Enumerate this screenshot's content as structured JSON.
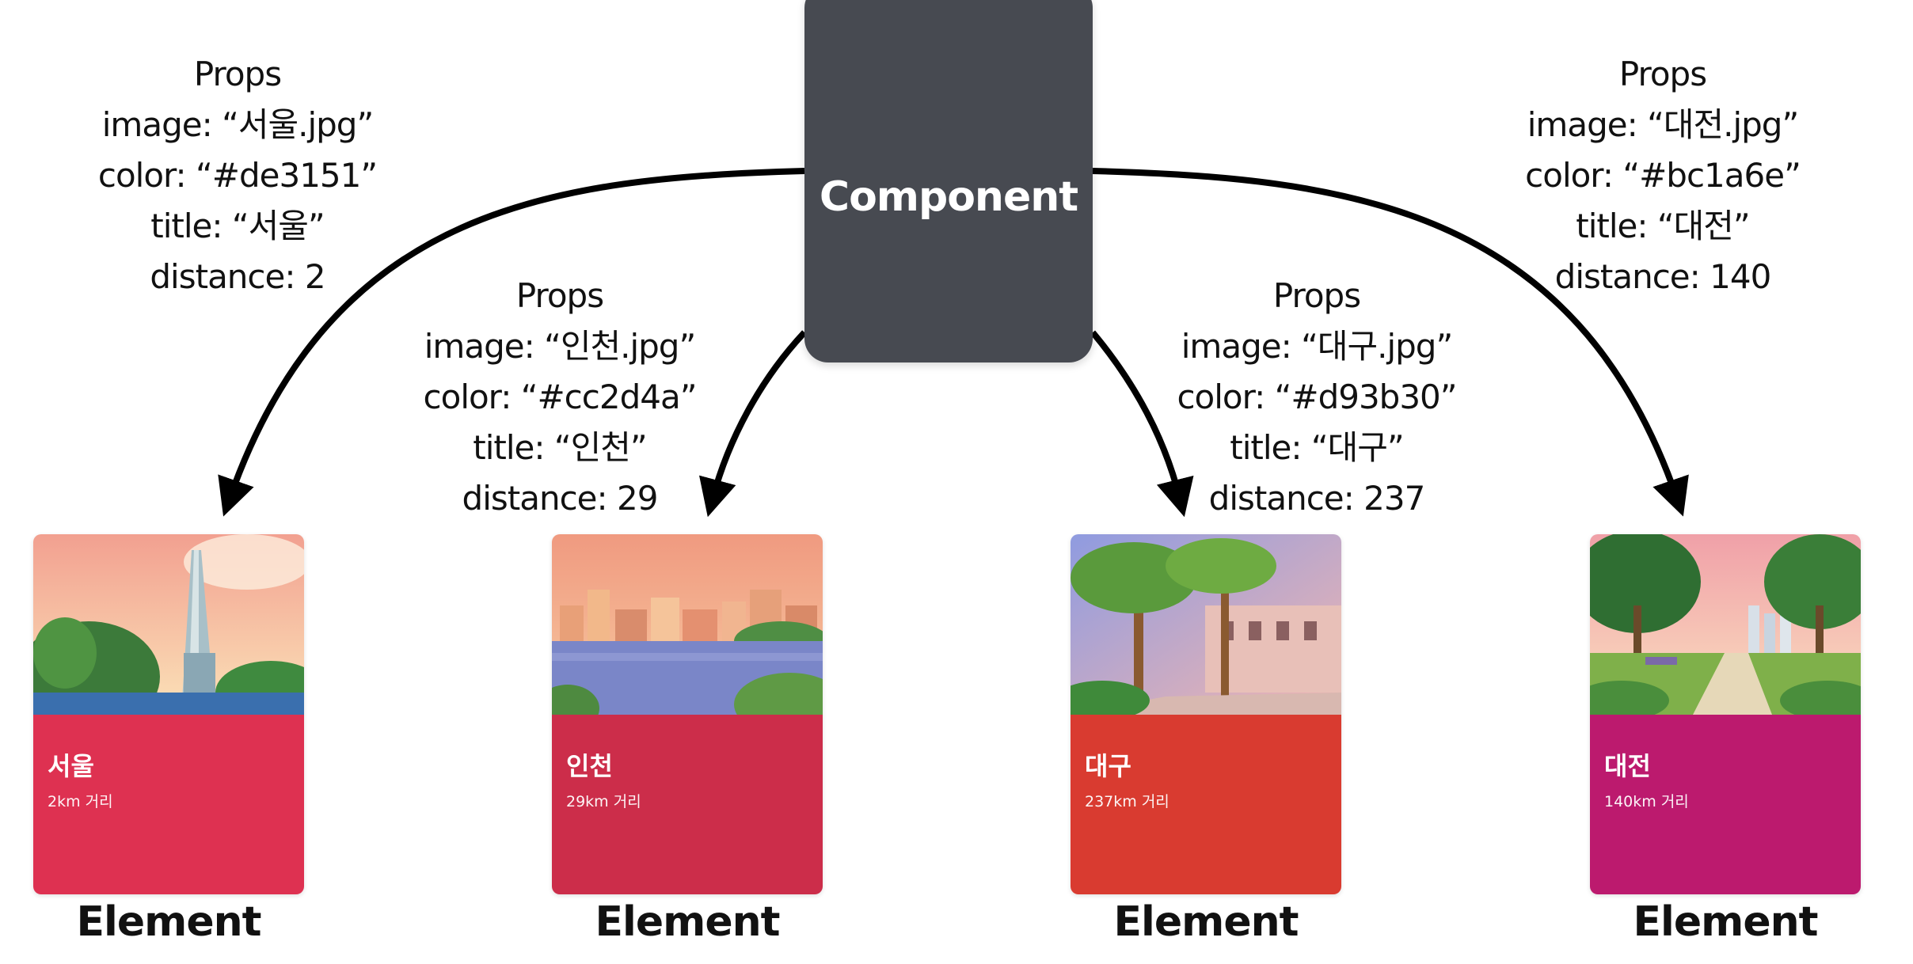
{
  "component": {
    "label": "Component"
  },
  "props_sets": [
    {
      "heading": "Props",
      "image_line": "image: “서울.jpg”",
      "color_line": "color: “#de3151”",
      "title_line": "title: “서울”",
      "distance_line": "distance: 2"
    },
    {
      "heading": "Props",
      "image_line": "image: “인천.jpg”",
      "color_line": "color: “#cc2d4a”",
      "title_line": "title: “인천”",
      "distance_line": "distance: 29"
    },
    {
      "heading": "Props",
      "image_line": "image: “대구.jpg”",
      "color_line": "color: “#d93b30”",
      "title_line": "title: “대구”",
      "distance_line": "distance: 237"
    },
    {
      "heading": "Props",
      "image_line": "image: “대전.jpg”",
      "color_line": "color: “#bc1a6e”",
      "title_line": "title: “대전”",
      "distance_line": "distance: 140"
    }
  ],
  "cards": [
    {
      "title": "서울",
      "distance": "2km 거리",
      "color": "#de3151",
      "label": "Element"
    },
    {
      "title": "인천",
      "distance": "29km 거리",
      "color": "#cc2d4a",
      "label": "Element"
    },
    {
      "title": "대구",
      "distance": "237km 거리",
      "color": "#d93b30",
      "label": "Element"
    },
    {
      "title": "대전",
      "distance": "140km 거리",
      "color": "#bc1a6e",
      "label": "Element"
    }
  ],
  "colors": {
    "component_bg": "#474a51",
    "arrow": "#000000",
    "text": "#111111"
  }
}
